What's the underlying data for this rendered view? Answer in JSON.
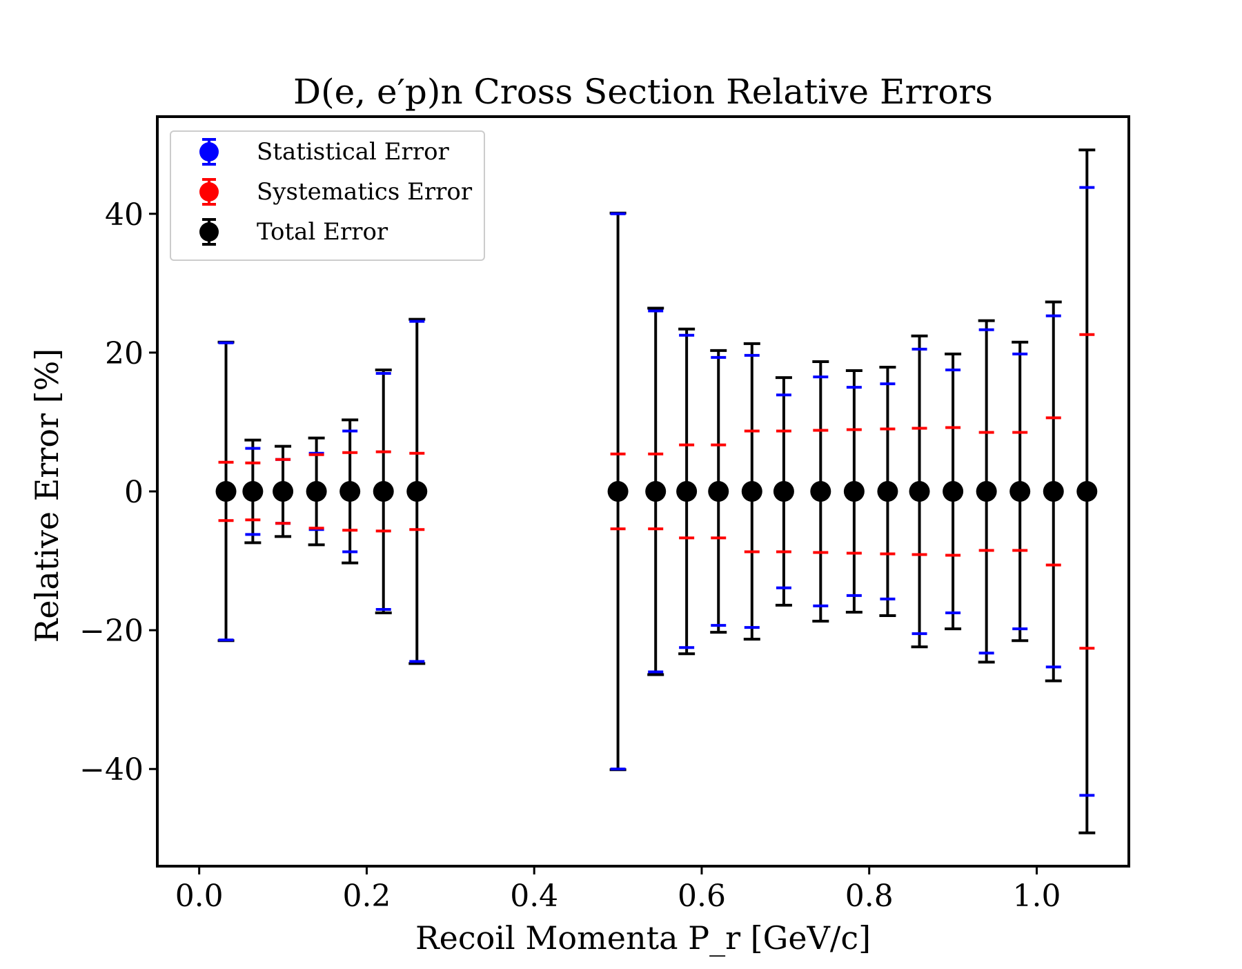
{
  "chart_data": {
    "type": "errorbar",
    "title": "D(e, e′p)n Cross Section Relative Errors",
    "xlabel": "Recoil Momenta P_r [GeV/c]",
    "ylabel": "Relative Error [%]",
    "xlim": [
      -0.05,
      1.11
    ],
    "ylim": [
      -54,
      54
    ],
    "xticks": [
      0.0,
      0.2,
      0.4,
      0.6,
      0.8,
      1.0
    ],
    "xtick_labels": [
      "0.0",
      "0.2",
      "0.4",
      "0.6",
      "0.8",
      "1.0"
    ],
    "yticks": [
      -40,
      -20,
      0,
      20,
      40
    ],
    "ytick_labels": [
      "−40",
      "−20",
      "0",
      "20",
      "40"
    ],
    "legend_position": "upper-left",
    "x": [
      0.032,
      0.064,
      0.1,
      0.14,
      0.18,
      0.22,
      0.26,
      0.5,
      0.545,
      0.582,
      0.62,
      0.66,
      0.698,
      0.742,
      0.782,
      0.822,
      0.86,
      0.9,
      0.94,
      0.98,
      1.02,
      1.06
    ],
    "y": [
      0,
      0,
      0,
      0,
      0,
      0,
      0,
      0,
      0,
      0,
      0,
      0,
      0,
      0,
      0,
      0,
      0,
      0,
      0,
      0,
      0,
      0
    ],
    "series": [
      {
        "name": "Statistical Error",
        "color": "#0000ff",
        "errors": [
          21.4,
          6.2,
          4.6,
          5.5,
          8.7,
          17.0,
          24.5,
          40.0,
          26.0,
          22.5,
          19.3,
          19.6,
          13.9,
          16.5,
          15.0,
          15.5,
          20.5,
          17.5,
          23.3,
          19.8,
          25.3,
          43.8
        ]
      },
      {
        "name": "Systematics Error",
        "color": "#ff0000",
        "errors": [
          4.2,
          4.1,
          4.6,
          5.3,
          5.6,
          5.7,
          5.5,
          5.4,
          5.4,
          6.7,
          6.7,
          8.7,
          8.7,
          8.8,
          8.9,
          9.0,
          9.1,
          9.2,
          8.5,
          8.5,
          10.6,
          22.6
        ]
      },
      {
        "name": "Total Error",
        "color": "#000000",
        "errors": [
          21.5,
          7.4,
          6.5,
          7.7,
          10.3,
          17.5,
          24.8,
          40.1,
          26.4,
          23.4,
          20.3,
          21.3,
          16.4,
          18.7,
          17.4,
          17.9,
          22.4,
          19.8,
          24.6,
          21.5,
          27.3,
          49.2
        ]
      }
    ]
  }
}
